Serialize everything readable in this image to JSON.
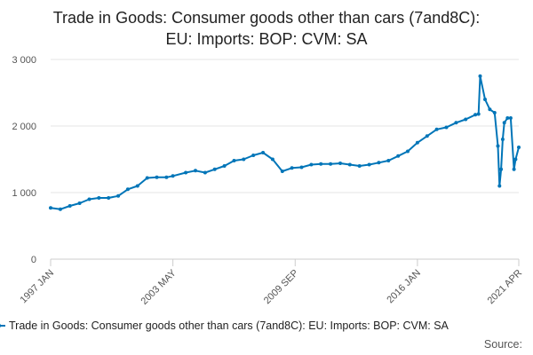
{
  "chart_data": {
    "type": "line",
    "title_line1": "Trade in Goods: Consumer goods other than cars (7and8C):",
    "title_line2": "EU: Imports: BOP: CVM: SA",
    "ylim": [
      0,
      3000
    ],
    "y_ticks": [
      "0",
      "1 000",
      "2 000",
      "3 000"
    ],
    "x_tick_labels": [
      "1997 JAN",
      "2003 MAY",
      "2009 SEP",
      "2016 JAN",
      "2021 APR"
    ],
    "series": [
      {
        "name": "Trade in Goods: Consumer goods other than cars (7and8C): EU: Imports: BOP: CVM: SA",
        "color": "#0075b8",
        "x": [
          "1997-01",
          "1997-07",
          "1998-01",
          "1998-07",
          "1999-01",
          "1999-07",
          "2000-01",
          "2000-07",
          "2001-01",
          "2001-07",
          "2002-01",
          "2002-07",
          "2003-01",
          "2003-05",
          "2004-01",
          "2004-07",
          "2005-01",
          "2005-07",
          "2006-01",
          "2006-07",
          "2007-01",
          "2007-07",
          "2008-01",
          "2008-07",
          "2009-01",
          "2009-07",
          "2010-01",
          "2010-07",
          "2011-01",
          "2011-07",
          "2012-01",
          "2012-07",
          "2013-01",
          "2013-07",
          "2014-01",
          "2014-07",
          "2015-01",
          "2015-07",
          "2016-01",
          "2016-07",
          "2017-01",
          "2017-07",
          "2018-01",
          "2018-07",
          "2019-01",
          "2019-03",
          "2019-04",
          "2019-07",
          "2019-10",
          "2020-01",
          "2020-03",
          "2020-04",
          "2020-05",
          "2020-06",
          "2020-07",
          "2020-09",
          "2020-11",
          "2021-01",
          "2021-02",
          "2021-04"
        ],
        "values": [
          770,
          750,
          800,
          840,
          900,
          920,
          920,
          950,
          1050,
          1100,
          1220,
          1230,
          1230,
          1250,
          1300,
          1330,
          1300,
          1350,
          1400,
          1480,
          1500,
          1560,
          1600,
          1500,
          1320,
          1370,
          1380,
          1420,
          1430,
          1430,
          1440,
          1420,
          1400,
          1420,
          1450,
          1480,
          1550,
          1620,
          1750,
          1850,
          1950,
          1980,
          2050,
          2100,
          2170,
          2180,
          2750,
          2400,
          2250,
          2200,
          1700,
          1100,
          1350,
          1800,
          2050,
          2120,
          2120,
          1350,
          1500,
          1680
        ]
      }
    ],
    "source_label": "Source:"
  },
  "colors": {
    "line": "#0075b8",
    "grid": "#e6e6e6",
    "axis": "#cccccc"
  }
}
